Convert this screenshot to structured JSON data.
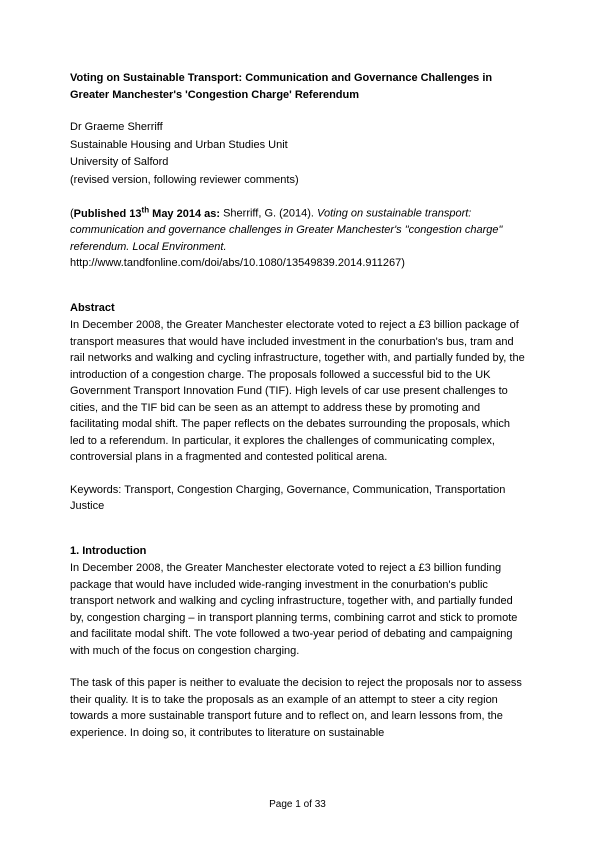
{
  "title": "Voting on Sustainable Transport: Communication and Governance Challenges in Greater Manchester's 'Congestion Charge' Referendum",
  "author": {
    "name": "Dr Graeme Sherriff",
    "unit": "Sustainable Housing and Urban Studies Unit",
    "institution": "University of Salford",
    "note": "(revised version, following reviewer comments)"
  },
  "published": {
    "prefix": "(Published 13",
    "sup": "th",
    "date_suffix": " May 2014 as: ",
    "citation_author": "Sherriff, G. (2014). ",
    "citation_title": "Voting on sustainable transport: communication and governance challenges in Greater Manchester's \"congestion charge\" referendum. Local Environment.",
    "url": "http://www.tandfonline.com/doi/abs/10.1080/13549839.2014.911267)"
  },
  "abstract": {
    "heading": "Abstract",
    "text": "In December 2008, the Greater Manchester electorate voted to reject a £3 billion package of transport measures that would have included investment in the conurbation's bus, tram and rail networks and walking and cycling infrastructure, together with, and partially funded by, the introduction of a congestion charge. The proposals followed a successful bid to the UK Government Transport Innovation Fund (TIF). High levels of car use present challenges to cities, and the TIF bid can be seen as an attempt to address these by promoting and facilitating modal shift. The paper reflects on the debates surrounding the proposals, which led to a referendum. In particular, it explores the challenges of communicating complex, controversial plans in a fragmented and contested political arena."
  },
  "keywords": "Keywords: Transport, Congestion Charging, Governance, Communication, Transportation Justice",
  "introduction": {
    "heading": "1. Introduction",
    "para1": "In December 2008, the Greater Manchester electorate voted to reject a £3 billion funding package that would have included wide-ranging investment in the conurbation's public transport network and walking and cycling infrastructure, together with, and partially funded by, congestion charging – in transport planning terms, combining carrot and stick to promote and facilitate modal shift. The vote followed a two-year period of debating and campaigning with much of the focus on congestion charging.",
    "para2": "The task of this paper is neither to evaluate the decision to reject the proposals nor to assess their quality. It is to take the proposals as an example of an attempt to steer a city region towards a more sustainable transport future and to reflect on, and learn lessons from, the experience. In doing so, it contributes to literature on sustainable"
  },
  "footer": "Page 1 of 33"
}
